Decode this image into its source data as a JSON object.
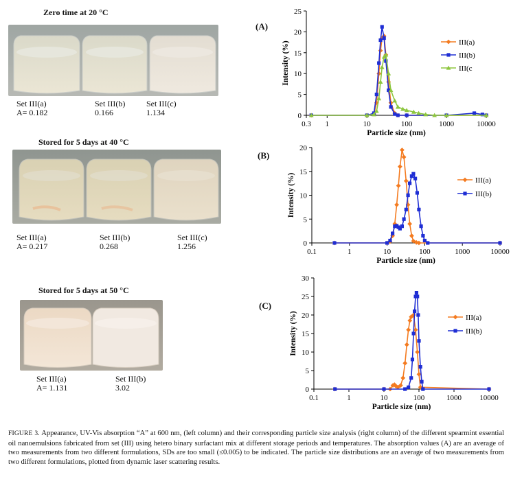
{
  "photos": [
    {
      "title": "Zero time at 20 °C",
      "labels": [
        {
          "name": "Set III(a)",
          "value": "A= 0.182"
        },
        {
          "name": "Set III(b)",
          "value": "0.166"
        },
        {
          "name": "Set III(c)",
          "value": "1.134"
        }
      ]
    },
    {
      "title": "Stored for 5 days at 40 °C",
      "labels": [
        {
          "name": "Set III(a)",
          "value": "A= 0.217"
        },
        {
          "name": "Set III(b)",
          "value": "0.268"
        },
        {
          "name": "Set III(c)",
          "value": "1.256"
        }
      ]
    },
    {
      "title": "Stored for 5 days at 50 °C",
      "labels": [
        {
          "name": "Set III(a)",
          "value": "A= 1.131"
        },
        {
          "name": "Set III(b)",
          "value": "3.02"
        }
      ]
    }
  ],
  "caption": {
    "lead": "FIGURE 3.",
    "text": " Appearance, UV-Vis absorption “A” at 600 nm, (left column) and their corresponding particle size analysis (right column) of the different spearmint essential oil nanoemulsions fabricated from set (III) using hetero binary surfactant mix at different storage periods and temperatures. The absorption values (A) are an average of two measurements from two different formulations, SDs are too small (≤0.005) to be indicated. The particle size distributions are an average of two measurements from two different formulations, plotted from dynamic laser scattering results."
  },
  "colors": {
    "orange": "#f47b20",
    "blue": "#1f2ed4",
    "green": "#8dc63f"
  },
  "chart_data": [
    {
      "panel": "(A)",
      "type": "line",
      "x_scale": "log",
      "xlabel": "Particle size (nm)",
      "ylabel": "Intensity (%)",
      "xlim": [
        0.3,
        10000
      ],
      "ylim": [
        0,
        25
      ],
      "xticks": [
        0.3,
        1,
        10,
        100,
        1000,
        10000
      ],
      "xtick_labels": [
        "0.3",
        "1",
        "10",
        "100",
        "1000",
        "10000"
      ],
      "yticks": [
        0,
        5,
        10,
        15,
        20,
        25
      ],
      "legend": "right",
      "series": [
        {
          "name": "III(a)",
          "color": "orange",
          "marker": "diamond",
          "x": [
            0.4,
            10,
            15,
            17.5,
            20,
            22,
            24,
            27,
            30,
            35,
            40,
            50,
            60,
            100,
            1000,
            10000
          ],
          "y": [
            0,
            0,
            0.3,
            3,
            10,
            15.5,
            18.5,
            19,
            14.5,
            8,
            3,
            0.5,
            0,
            0,
            0,
            0
          ]
        },
        {
          "name": "III(b)",
          "color": "blue",
          "marker": "square",
          "x": [
            0.4,
            10,
            15,
            17.5,
            20,
            22,
            24,
            27,
            30,
            35,
            40,
            50,
            60,
            100,
            1000,
            5000,
            8000,
            10000
          ],
          "y": [
            0,
            0,
            0.5,
            5,
            12.5,
            18,
            21.2,
            18.5,
            13,
            6,
            2,
            0.3,
            0,
            0,
            0,
            0.5,
            0.2,
            0
          ]
        },
        {
          "name": "III(c",
          "color": "green",
          "marker": "triangle",
          "x": [
            0.4,
            10,
            15,
            17.5,
            20,
            22,
            24,
            27,
            30,
            35,
            40,
            50,
            60,
            80,
            100,
            150,
            200,
            300,
            500,
            1000,
            10000
          ],
          "y": [
            0,
            0,
            0.2,
            1,
            4,
            8,
            11.5,
            14,
            14.5,
            10,
            6,
            3.5,
            2,
            1.5,
            1.2,
            0.8,
            0.5,
            0.2,
            0,
            0,
            0
          ]
        }
      ]
    },
    {
      "panel": "(B)",
      "type": "line",
      "x_scale": "log",
      "xlabel": "Particle size (nm)",
      "ylabel": "Intensity (%)",
      "xlim": [
        0.1,
        10000
      ],
      "ylim": [
        0,
        20
      ],
      "xticks": [
        0.1,
        1,
        10,
        100,
        1000,
        10000
      ],
      "xtick_labels": [
        "0.1",
        "1",
        "10",
        "100",
        "1000",
        "10000"
      ],
      "yticks": [
        0,
        5,
        10,
        15,
        20
      ],
      "legend": "right",
      "series": [
        {
          "name": "III(a)",
          "color": "orange",
          "marker": "diamond",
          "x": [
            0.4,
            10,
            12,
            14,
            16,
            18,
            20,
            22,
            25,
            28,
            32,
            36,
            40,
            45,
            50,
            60,
            70,
            10000
          ],
          "y": [
            0,
            0,
            0.3,
            1.5,
            4,
            8,
            12,
            16,
            19.5,
            18,
            13,
            8,
            4,
            1.5,
            0.4,
            0.1,
            0,
            0
          ]
        },
        {
          "name": "III(b)",
          "color": "blue",
          "marker": "square",
          "x": [
            0.4,
            10,
            12,
            14,
            16,
            18,
            20,
            22,
            25,
            28,
            32,
            36,
            40,
            45,
            50,
            56,
            63,
            70,
            80,
            90,
            100,
            120,
            10000
          ],
          "y": [
            0,
            0,
            0.5,
            2,
            3.5,
            3.6,
            3.3,
            3.0,
            3.5,
            5,
            7,
            10,
            12.5,
            14,
            14.5,
            13.5,
            10.5,
            7,
            3.5,
            1.5,
            0.5,
            0,
            0
          ]
        }
      ]
    },
    {
      "panel": "(C)",
      "type": "line",
      "x_scale": "log",
      "xlabel": "Particle size (nm)",
      "ylabel": "Intensity (%)",
      "xlim": [
        0.1,
        10000
      ],
      "ylim": [
        0,
        30
      ],
      "xticks": [
        0.1,
        1,
        10,
        100,
        1000,
        10000
      ],
      "xtick_labels": [
        "0.1",
        "1",
        "10",
        "100",
        "1000",
        "10000"
      ],
      "yticks": [
        0,
        5,
        10,
        15,
        20,
        25,
        30
      ],
      "legend": "right",
      "series": [
        {
          "name": "III(a)",
          "color": "orange",
          "marker": "diamond",
          "x": [
            0.4,
            10,
            15,
            18,
            20,
            22,
            25,
            30,
            35,
            40,
            45,
            50,
            55,
            60,
            70,
            80,
            90,
            100,
            110,
            10000
          ],
          "y": [
            0,
            0,
            0,
            1,
            1.2,
            0.8,
            0.5,
            1,
            3,
            7,
            12,
            16,
            18.5,
            19.5,
            20,
            16,
            10,
            4,
            0.5,
            0
          ]
        },
        {
          "name": "III(b)",
          "color": "blue",
          "marker": "square",
          "x": [
            0.4,
            10,
            40,
            50,
            60,
            65,
            70,
            75,
            80,
            85,
            90,
            95,
            100,
            110,
            120,
            130,
            10000
          ],
          "y": [
            0,
            0,
            0,
            0.5,
            3,
            8,
            15,
            21,
            25,
            26,
            25,
            20,
            13,
            6,
            2,
            0,
            0
          ]
        }
      ]
    }
  ]
}
